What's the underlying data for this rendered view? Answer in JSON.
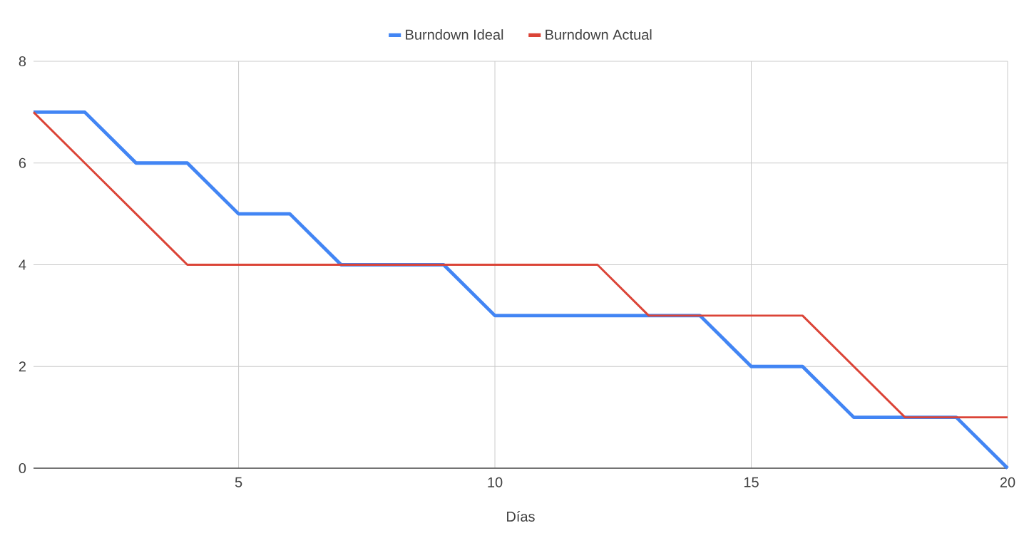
{
  "chart_data": {
    "type": "line",
    "xlabel": "Días",
    "x": [
      1,
      2,
      3,
      4,
      5,
      6,
      7,
      8,
      9,
      10,
      11,
      12,
      13,
      14,
      15,
      16,
      17,
      18,
      19,
      20
    ],
    "series": [
      {
        "name": "Burndown Ideal",
        "color": "#4285f4",
        "values": [
          7,
          7,
          6,
          6,
          5,
          5,
          4,
          4,
          4,
          3,
          3,
          3,
          3,
          3,
          2,
          2,
          1,
          1,
          1,
          0
        ]
      },
      {
        "name": "Burndown Actual",
        "color": "#db4437",
        "values": [
          7,
          6,
          5,
          4,
          4,
          4,
          4,
          4,
          4,
          4,
          4,
          4,
          3,
          3,
          3,
          3,
          2,
          1,
          1,
          1
        ]
      }
    ],
    "xlim": [
      1,
      20
    ],
    "xticks": [
      5,
      10,
      15,
      20
    ],
    "ylim": [
      0,
      8
    ],
    "yticks": [
      0,
      2,
      4,
      6,
      8
    ],
    "grid": true,
    "legend": "top",
    "marker": "none",
    "line_style": "solid"
  }
}
